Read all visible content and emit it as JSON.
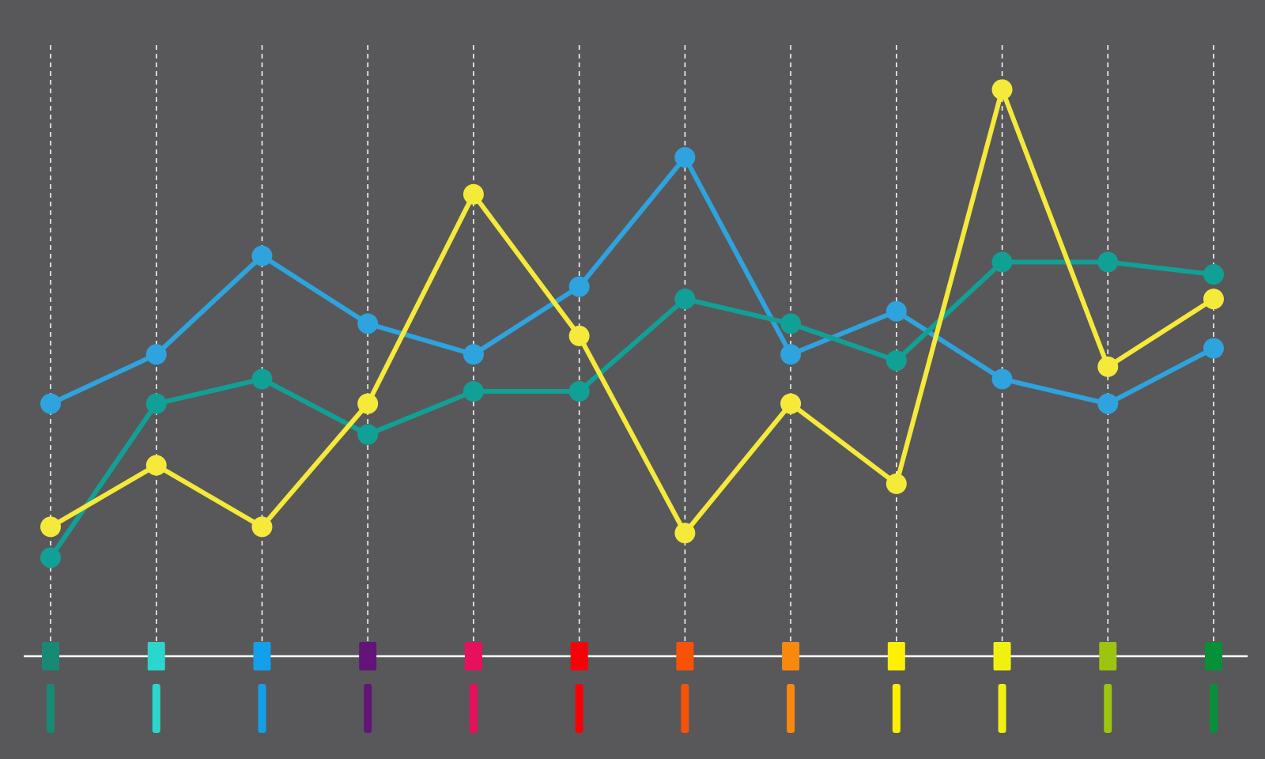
{
  "chart_data": {
    "type": "line",
    "categories": [
      null,
      null,
      null,
      null,
      null,
      null,
      null,
      null,
      null,
      null,
      null,
      null
    ],
    "category_colors": [
      "#168a74",
      "#2bd6cc",
      "#12a0eb",
      "#621478",
      "#e8105c",
      "#f80008",
      "#f85208",
      "#f8890e",
      "#fff000",
      "#f1f110",
      "#9dc40f",
      "#069038"
    ],
    "series": [
      {
        "color": "#2ea3dd",
        "values": [
          41,
          49,
          65,
          54,
          49,
          60,
          81,
          49,
          56,
          45,
          41,
          50
        ]
      },
      {
        "color": "#11a096",
        "values": [
          16,
          41,
          45,
          36,
          43,
          43,
          58,
          54,
          48,
          64,
          64,
          62
        ]
      },
      {
        "color": "#f5e93a",
        "values": [
          21,
          31,
          21,
          41,
          75,
          52,
          20,
          41,
          28,
          92,
          47,
          58
        ]
      }
    ],
    "ylim": [
      0,
      100
    ],
    "grid": true
  }
}
